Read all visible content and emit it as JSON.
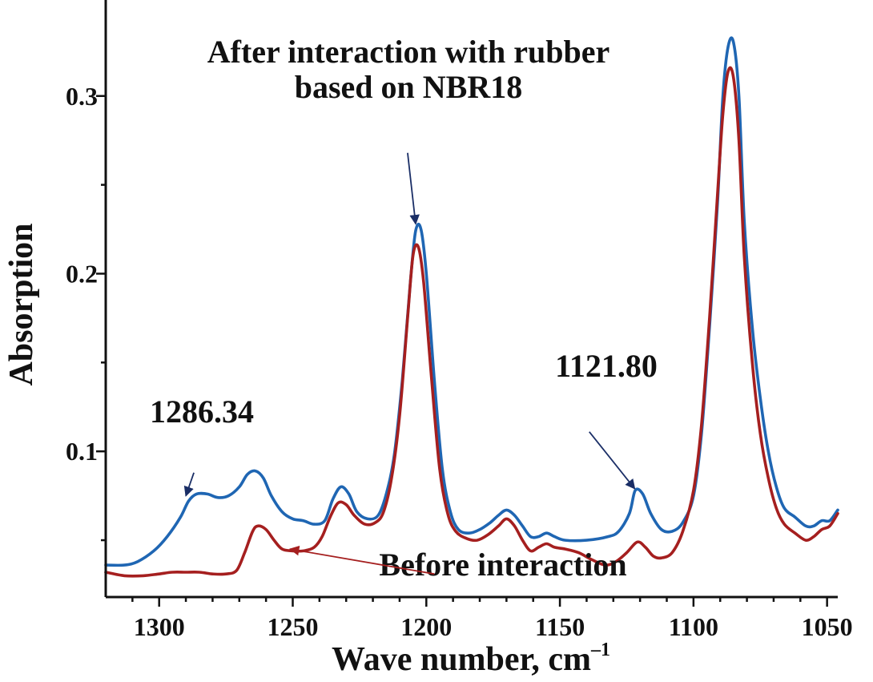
{
  "chart_data": {
    "type": "line",
    "title": "",
    "xlabel": "Wave number, cm",
    "xlabel_superscript": "–1",
    "ylabel": "Absorption",
    "xlim": [
      1320,
      1046
    ],
    "ylim": [
      0.018,
      0.345
    ],
    "x_direction": "descending",
    "x_ticks": [
      1300,
      1250,
      1200,
      1150,
      1100,
      1050
    ],
    "x_tick_labels": [
      "1300",
      "1250",
      "1200",
      "1150",
      "1100",
      "1050"
    ],
    "y_major_ticks": [
      0.1,
      0.2,
      0.3
    ],
    "y_tick_labels": [
      "0.1",
      "0.2",
      "0.3"
    ],
    "y_minor_ticks": [
      0.05,
      0.15,
      0.25
    ],
    "grid": false,
    "series": [
      {
        "name": "After interaction with rubber based on NBR18",
        "color": "#1f66b3",
        "points": [
          [
            1320,
            0.036
          ],
          [
            1313,
            0.036
          ],
          [
            1308,
            0.038
          ],
          [
            1302,
            0.044
          ],
          [
            1297,
            0.052
          ],
          [
            1292,
            0.063
          ],
          [
            1289,
            0.072
          ],
          [
            1286,
            0.076
          ],
          [
            1282,
            0.076
          ],
          [
            1278,
            0.074
          ],
          [
            1274,
            0.075
          ],
          [
            1270,
            0.08
          ],
          [
            1267,
            0.087
          ],
          [
            1264,
            0.089
          ],
          [
            1261,
            0.085
          ],
          [
            1258,
            0.075
          ],
          [
            1254,
            0.066
          ],
          [
            1250,
            0.062
          ],
          [
            1246,
            0.061
          ],
          [
            1242,
            0.059
          ],
          [
            1238,
            0.061
          ],
          [
            1235,
            0.073
          ],
          [
            1232,
            0.08
          ],
          [
            1229,
            0.076
          ],
          [
            1226,
            0.066
          ],
          [
            1222,
            0.062
          ],
          [
            1218,
            0.064
          ],
          [
            1215,
            0.076
          ],
          [
            1212,
            0.098
          ],
          [
            1209,
            0.14
          ],
          [
            1206,
            0.195
          ],
          [
            1204,
            0.224
          ],
          [
            1202,
            0.225
          ],
          [
            1200,
            0.2
          ],
          [
            1197,
            0.14
          ],
          [
            1194,
            0.09
          ],
          [
            1191,
            0.066
          ],
          [
            1188,
            0.056
          ],
          [
            1184,
            0.054
          ],
          [
            1180,
            0.056
          ],
          [
            1176,
            0.06
          ],
          [
            1173,
            0.064
          ],
          [
            1170,
            0.067
          ],
          [
            1167,
            0.064
          ],
          [
            1164,
            0.058
          ],
          [
            1161,
            0.052
          ],
          [
            1158,
            0.052
          ],
          [
            1155,
            0.054
          ],
          [
            1152,
            0.052
          ],
          [
            1148,
            0.05
          ],
          [
            1140,
            0.05
          ],
          [
            1132,
            0.052
          ],
          [
            1128,
            0.055
          ],
          [
            1124,
            0.065
          ],
          [
            1121.8,
            0.078
          ],
          [
            1119,
            0.076
          ],
          [
            1116,
            0.065
          ],
          [
            1112,
            0.056
          ],
          [
            1108,
            0.055
          ],
          [
            1104,
            0.06
          ],
          [
            1100,
            0.075
          ],
          [
            1097,
            0.11
          ],
          [
            1094,
            0.17
          ],
          [
            1091,
            0.24
          ],
          [
            1089,
            0.3
          ],
          [
            1087,
            0.328
          ],
          [
            1085,
            0.33
          ],
          [
            1083,
            0.3
          ],
          [
            1081,
            0.23
          ],
          [
            1078,
            0.17
          ],
          [
            1075,
            0.13
          ],
          [
            1072,
            0.1
          ],
          [
            1069,
            0.08
          ],
          [
            1066,
            0.068
          ],
          [
            1062,
            0.063
          ],
          [
            1058,
            0.058
          ],
          [
            1055,
            0.058
          ],
          [
            1052,
            0.061
          ],
          [
            1049,
            0.061
          ],
          [
            1046,
            0.067
          ]
        ]
      },
      {
        "name": "Before interaction",
        "color": "#a51f1f",
        "points": [
          [
            1320,
            0.032
          ],
          [
            1313,
            0.03
          ],
          [
            1306,
            0.03
          ],
          [
            1300,
            0.031
          ],
          [
            1295,
            0.032
          ],
          [
            1290,
            0.032
          ],
          [
            1285,
            0.032
          ],
          [
            1280,
            0.031
          ],
          [
            1275,
            0.031
          ],
          [
            1271,
            0.033
          ],
          [
            1268,
            0.043
          ],
          [
            1265,
            0.055
          ],
          [
            1263,
            0.058
          ],
          [
            1260,
            0.056
          ],
          [
            1257,
            0.05
          ],
          [
            1254,
            0.045
          ],
          [
            1250,
            0.044
          ],
          [
            1246,
            0.044
          ],
          [
            1242,
            0.046
          ],
          [
            1239,
            0.052
          ],
          [
            1236,
            0.063
          ],
          [
            1233,
            0.071
          ],
          [
            1230,
            0.07
          ],
          [
            1227,
            0.064
          ],
          [
            1223,
            0.059
          ],
          [
            1219,
            0.06
          ],
          [
            1216,
            0.066
          ],
          [
            1213,
            0.085
          ],
          [
            1210,
            0.12
          ],
          [
            1207,
            0.175
          ],
          [
            1205,
            0.21
          ],
          [
            1203,
            0.215
          ],
          [
            1201,
            0.195
          ],
          [
            1198,
            0.14
          ],
          [
            1195,
            0.09
          ],
          [
            1192,
            0.065
          ],
          [
            1189,
            0.055
          ],
          [
            1185,
            0.051
          ],
          [
            1181,
            0.05
          ],
          [
            1177,
            0.053
          ],
          [
            1173,
            0.058
          ],
          [
            1170,
            0.062
          ],
          [
            1167,
            0.058
          ],
          [
            1164,
            0.05
          ],
          [
            1161,
            0.044
          ],
          [
            1158,
            0.046
          ],
          [
            1155,
            0.048
          ],
          [
            1152,
            0.046
          ],
          [
            1148,
            0.045
          ],
          [
            1143,
            0.043
          ],
          [
            1138,
            0.039
          ],
          [
            1133,
            0.036
          ],
          [
            1129,
            0.038
          ],
          [
            1125,
            0.043
          ],
          [
            1121,
            0.049
          ],
          [
            1118,
            0.046
          ],
          [
            1115,
            0.041
          ],
          [
            1112,
            0.04
          ],
          [
            1108,
            0.043
          ],
          [
            1104,
            0.055
          ],
          [
            1100,
            0.078
          ],
          [
            1097,
            0.115
          ],
          [
            1094,
            0.175
          ],
          [
            1091,
            0.245
          ],
          [
            1089,
            0.29
          ],
          [
            1087,
            0.314
          ],
          [
            1085,
            0.31
          ],
          [
            1083,
            0.275
          ],
          [
            1081,
            0.21
          ],
          [
            1078,
            0.15
          ],
          [
            1075,
            0.11
          ],
          [
            1072,
            0.085
          ],
          [
            1069,
            0.068
          ],
          [
            1066,
            0.059
          ],
          [
            1062,
            0.054
          ],
          [
            1058,
            0.05
          ],
          [
            1055,
            0.052
          ],
          [
            1052,
            0.056
          ],
          [
            1049,
            0.058
          ],
          [
            1046,
            0.065
          ]
        ]
      }
    ],
    "annotations": [
      {
        "text_lines": [
          "After interaction with rubber",
          "based on NBR18"
        ],
        "arrow_to_x": 1204,
        "arrow_to_y": 0.228,
        "arrow_from_x": 1207,
        "arrow_from_y": 0.268,
        "arrow_color": "#1a2e66"
      },
      {
        "text_lines": [
          "1286.34"
        ],
        "arrow_to_x": 1290,
        "arrow_to_y": 0.075,
        "arrow_from_x": 1287,
        "arrow_from_y": 0.088,
        "arrow_color": "#1a2e66"
      },
      {
        "text_lines": [
          "1121.80"
        ],
        "arrow_to_x": 1122,
        "arrow_to_y": 0.079,
        "arrow_from_x": 1139,
        "arrow_from_y": 0.111,
        "arrow_color": "#1a2e66"
      },
      {
        "text_lines": [
          "Before interaction"
        ],
        "arrow_to_x": 1251,
        "arrow_to_y": 0.045,
        "arrow_from_x": 1197,
        "arrow_from_y": 0.031,
        "arrow_color": "#a51f1f"
      }
    ]
  }
}
